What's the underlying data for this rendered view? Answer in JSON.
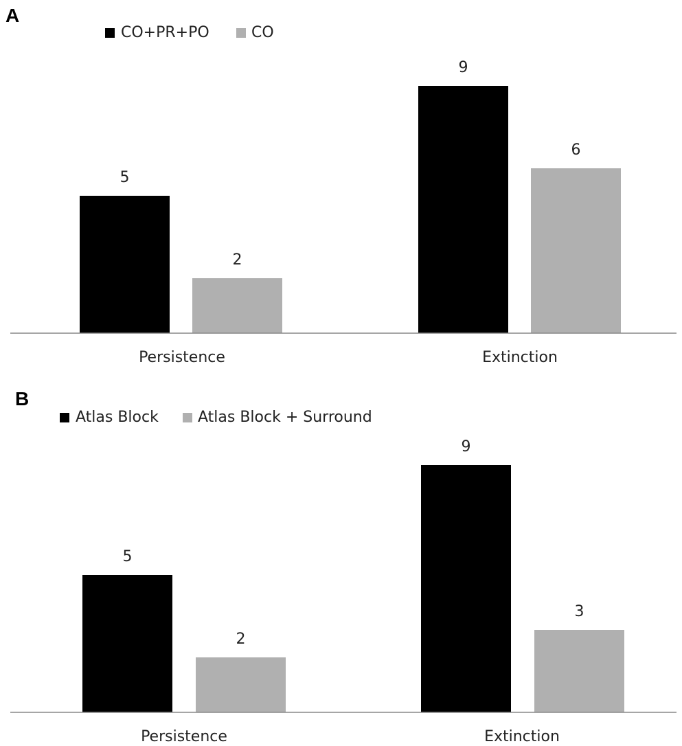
{
  "chart_data": [
    {
      "type": "bar",
      "panel_label": "A",
      "categories": [
        "Persistence",
        "Extinction"
      ],
      "series": [
        {
          "name": "CO+PR+PO",
          "values": [
            5,
            9
          ],
          "color": "#000000"
        },
        {
          "name": "CO",
          "values": [
            2,
            6
          ],
          "color": "#b0b0b0"
        }
      ],
      "data_labels": true,
      "ylim": [
        0,
        10
      ],
      "grid": false,
      "legend_position": "top-left"
    },
    {
      "type": "bar",
      "panel_label": "B",
      "categories": [
        "Persistence",
        "Extinction"
      ],
      "series": [
        {
          "name": "Atlas Block",
          "values": [
            5,
            9
          ],
          "color": "#000000"
        },
        {
          "name": "Atlas Block + Surround",
          "values": [
            2,
            3
          ],
          "color": "#b0b0b0"
        }
      ],
      "data_labels": true,
      "ylim": [
        0,
        10
      ],
      "grid": false,
      "legend_position": "top-left"
    }
  ]
}
